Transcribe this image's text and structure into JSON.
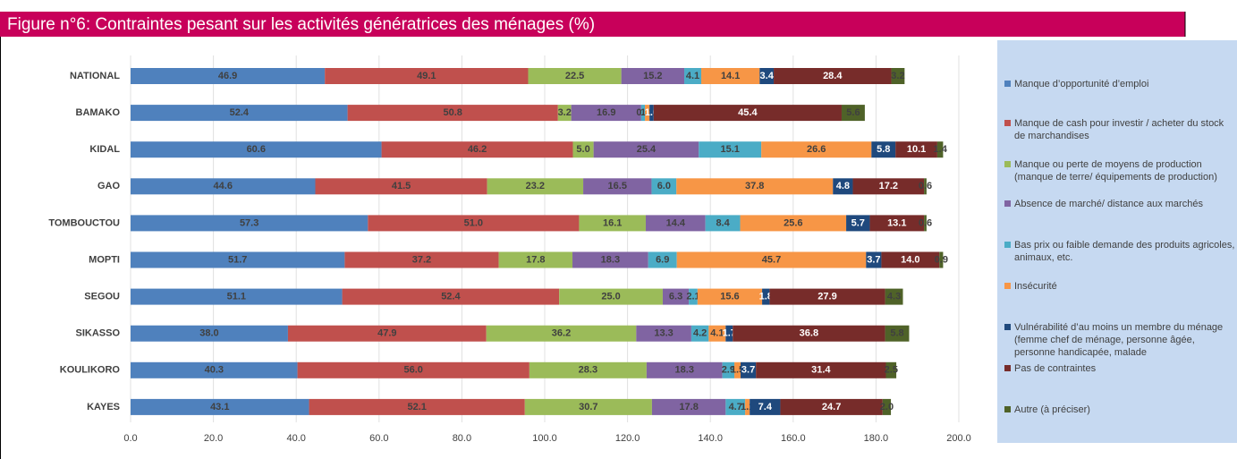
{
  "chart_data": {
    "type": "stacked_barh",
    "title": "Figure n°6:  Contraintes pesant sur les activités génératrices des ménages (%)",
    "categories": [
      "NATIONAL",
      "BAMAKO",
      "KIDAL",
      "GAO",
      "TOMBOUCTOU",
      "MOPTI",
      "SEGOU",
      "SIKASSO",
      "KOULIKORO",
      "KAYES"
    ],
    "series": [
      {
        "name": "Manque d’opportunité d’emploi",
        "color": "#4f81bd",
        "values": [
          46.9,
          52.4,
          60.6,
          44.6,
          57.3,
          51.7,
          51.1,
          38.0,
          40.3,
          43.1
        ],
        "value_labels": [
          "46.9",
          "52.4",
          "60.6",
          "44.6",
          "57.3",
          "51.7",
          "51.1",
          "38.0",
          "40.3",
          "43.1"
        ]
      },
      {
        "name": "Manque de cash pour investir / acheter du stock de marchandises",
        "color": "#c0504d",
        "values": [
          49.1,
          50.8,
          46.2,
          41.5,
          51.0,
          37.2,
          52.4,
          47.9,
          56.0,
          52.1
        ],
        "value_labels": [
          "49.1",
          "50.8",
          "46.2",
          "41.5",
          "51.0",
          "37.2",
          "52.4",
          "47.9",
          "56.0",
          "52.1"
        ]
      },
      {
        "name": "Manque ou perte de moyens de production (manque de terre/ équipements de production)",
        "color": "#9bbb59",
        "values": [
          22.5,
          3.2,
          5.0,
          23.2,
          16.1,
          17.8,
          25.0,
          36.2,
          28.3,
          30.7
        ],
        "value_labels": [
          "22.5",
          "3.2",
          "5.0",
          "23.2",
          "16.1",
          "17.8",
          "25.0",
          "36.2",
          "28.3",
          "30.7"
        ]
      },
      {
        "name": "Absence de marché/ distance aux marchés",
        "color": "#8064a2",
        "values": [
          15.2,
          16.9,
          25.4,
          16.5,
          14.4,
          18.3,
          6.3,
          13.3,
          18.3,
          17.8
        ],
        "value_labels": [
          "15.2",
          "16.9",
          "25.4",
          "16.5",
          "14.4",
          "18.3",
          "6.3",
          "13.3",
          "18.3",
          "17.8"
        ]
      },
      {
        "name": "Bas prix ou faible demande des produits agricoles, animaux, etc.",
        "color": "#4bacc6",
        "values": [
          4.1,
          0.9,
          15.1,
          6.0,
          8.4,
          6.9,
          2.1,
          4.2,
          2.9,
          4.7
        ],
        "value_labels": [
          "4.1",
          "0.9",
          "15.1",
          "6.0",
          "8.4",
          "6.9",
          "2.1",
          "4.2",
          "2.9",
          "4.7"
        ]
      },
      {
        "name": "Insécurité",
        "color": "#f79646",
        "values": [
          14.1,
          1.1,
          26.6,
          37.8,
          25.6,
          45.7,
          15.6,
          4.1,
          1.5,
          1.1
        ],
        "value_labels": [
          "14.1",
          "1.1",
          "26.6",
          "37.8",
          "25.6",
          "45.7",
          "15.6",
          "4.1",
          "1.5",
          "1.1"
        ]
      },
      {
        "name": "Vulnérabilité d’au moins un membre du ménage (femme chef de ménage, personne âgée, personne handicapée, malade",
        "color": "#1f497d",
        "values": [
          3.4,
          1.0,
          5.8,
          4.8,
          5.7,
          3.7,
          1.8,
          1.7,
          3.7,
          7.4
        ],
        "value_labels": [
          "3.4",
          "1.0",
          "5.8",
          "4.8",
          "5.7",
          "3.7",
          "1.8",
          "1.7",
          "3.7",
          "7.4"
        ]
      },
      {
        "name": "Pas de contraintes",
        "color": "#772c2a",
        "values": [
          28.4,
          45.4,
          10.1,
          17.2,
          13.1,
          14.0,
          27.9,
          36.8,
          31.4,
          24.7
        ],
        "value_labels": [
          "28.4",
          "45.4",
          "10.1",
          "17.2",
          "13.1",
          "14.0",
          "27.9",
          "36.8",
          "31.4",
          "24.7"
        ]
      },
      {
        "name": "Autre (à préciser)",
        "color": "#4f6228",
        "values": [
          3.2,
          5.6,
          1.4,
          0.6,
          0.6,
          0.9,
          4.3,
          5.8,
          2.5,
          2.0
        ],
        "value_labels": [
          "3.2",
          "5.6",
          "1.4",
          "0.6",
          "0.6",
          "0.9",
          "4.3",
          "5.8",
          "2.5",
          "2.0"
        ]
      }
    ],
    "xlim": [
      0,
      200
    ],
    "xticks": [
      {
        "value": 0,
        "label": "0.0"
      },
      {
        "value": 20,
        "label": "20.0"
      },
      {
        "value": 40,
        "label": "40.0"
      },
      {
        "value": 60,
        "label": "60.0"
      },
      {
        "value": 80,
        "label": "80.0"
      },
      {
        "value": 100,
        "label": "100.0"
      },
      {
        "value": 120,
        "label": "120.0"
      },
      {
        "value": 140,
        "label": "140.0"
      },
      {
        "value": 160,
        "label": "160.0"
      },
      {
        "value": 180,
        "label": "180.0"
      },
      {
        "value": 200,
        "label": "200.0"
      }
    ],
    "grid": true,
    "legend": "right"
  }
}
